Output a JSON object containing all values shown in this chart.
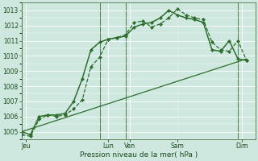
{
  "xlabel": "Pression niveau de la mer( hPa )",
  "bg_color": "#cee8e0",
  "grid_color": "#ffffff",
  "line_color": "#2d6e2d",
  "line_color2": "#336633",
  "ylim": [
    1004.5,
    1013.5
  ],
  "yticks": [
    1005,
    1006,
    1007,
    1008,
    1009,
    1010,
    1011,
    1012,
    1013
  ],
  "xlim": [
    0,
    27
  ],
  "day_positions": [
    0.5,
    10.0,
    12.5,
    18.0,
    25.5
  ],
  "day_labels": [
    "Jeu",
    "Lun",
    "Ven",
    "Sam",
    "Dim"
  ],
  "vline_positions": [
    0,
    9,
    12,
    18,
    25
  ],
  "series1_x": [
    0,
    1,
    2,
    3,
    4,
    5,
    6,
    7,
    8,
    9,
    10,
    11,
    12,
    13,
    14,
    15,
    16,
    17,
    18,
    19,
    20,
    21,
    22,
    23,
    24,
    25,
    26
  ],
  "series1_y": [
    1004.8,
    1004.7,
    1005.8,
    1006.1,
    1006.0,
    1006.1,
    1006.5,
    1007.1,
    1009.3,
    1009.9,
    1011.1,
    1011.2,
    1011.4,
    1012.2,
    1012.3,
    1011.9,
    1012.1,
    1012.5,
    1013.1,
    1012.7,
    1012.5,
    1012.4,
    1010.9,
    1010.4,
    1010.3,
    1011.0,
    1009.7
  ],
  "series2_x": [
    0,
    1,
    2,
    3,
    4,
    5,
    6,
    7,
    8,
    9,
    10,
    11,
    12,
    13,
    14,
    15,
    16,
    17,
    18,
    19,
    20,
    21,
    22,
    23,
    24,
    25,
    26
  ],
  "series2_y": [
    1005.0,
    1004.8,
    1006.0,
    1006.1,
    1006.1,
    1006.2,
    1007.0,
    1008.5,
    1010.4,
    1010.9,
    1011.1,
    1011.2,
    1011.3,
    1011.9,
    1012.1,
    1012.2,
    1012.5,
    1013.0,
    1012.7,
    1012.5,
    1012.4,
    1012.2,
    1010.4,
    1010.3,
    1011.0,
    1009.8,
    1009.7
  ],
  "series3_x": [
    0,
    26
  ],
  "series3_y": [
    1005.0,
    1009.8
  ]
}
